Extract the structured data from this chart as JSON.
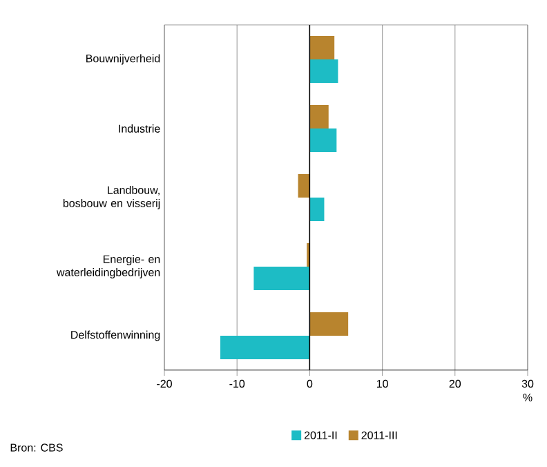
{
  "chart_data": {
    "type": "bar",
    "orientation": "horizontal",
    "categories": [
      "Bouwnijverheid",
      "Industrie",
      "Landbouw, bosbouw en visserij",
      "Energie- en waterleidingbedrijven",
      "Delfstoffenwinning"
    ],
    "series": [
      {
        "name": "2011-II",
        "color": "#1dbcc5",
        "values": [
          3.9,
          3.7,
          2.0,
          -7.7,
          -12.3
        ]
      },
      {
        "name": "2011-III",
        "color": "#b8842e",
        "values": [
          3.4,
          2.6,
          -1.6,
          -0.4,
          5.3
        ]
      }
    ],
    "xlim": [
      -20,
      30
    ],
    "xticks": [
      -20,
      -10,
      0,
      10,
      20,
      30
    ],
    "xlabel": "%",
    "grid": "x",
    "legend": "bottom",
    "annotations": [
      "Bron: CBS"
    ]
  }
}
